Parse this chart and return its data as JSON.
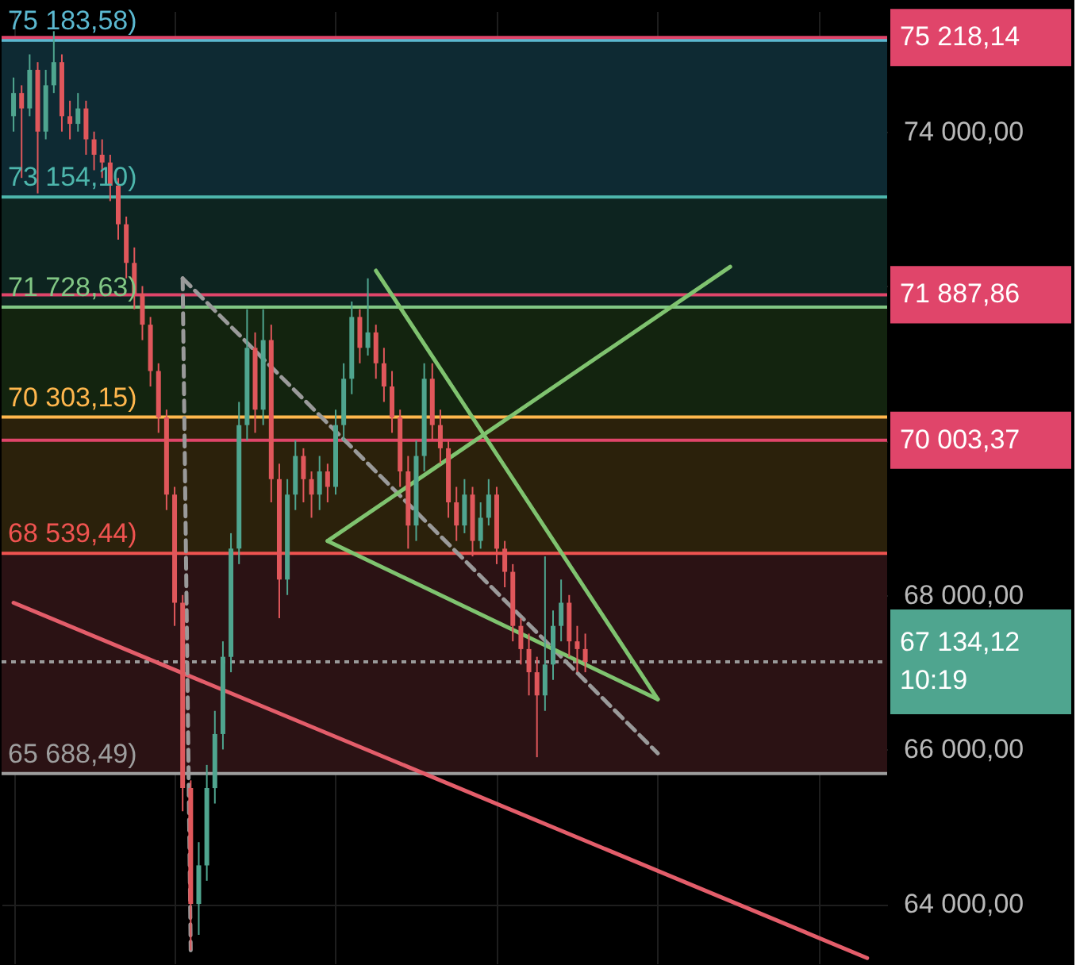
{
  "chart_data": {
    "type": "candlestick",
    "categories": [
      null,
      null,
      null,
      null,
      null,
      null,
      null,
      null,
      null,
      null,
      null,
      null,
      null,
      null,
      null,
      null,
      null,
      null,
      null,
      null,
      null,
      null,
      null,
      null,
      null,
      null,
      null,
      null,
      null,
      null,
      null,
      null,
      null,
      null,
      null,
      null,
      null,
      null,
      null,
      null,
      null,
      null,
      null,
      null,
      null,
      null,
      null,
      null,
      null,
      null,
      null,
      null,
      null,
      null,
      null,
      null,
      null,
      null,
      null,
      null,
      null,
      null,
      null,
      null,
      null,
      null,
      null,
      null,
      null,
      null,
      null,
      null,
      null,
      null,
      null,
      null,
      null,
      null,
      null,
      null,
      null,
      null,
      null,
      null,
      null,
      null,
      null,
      null,
      null,
      null,
      null,
      null,
      null,
      null,
      null,
      null,
      null,
      null,
      null,
      null,
      null,
      null,
      null,
      null,
      null,
      null,
      null,
      null
    ],
    "ohlc": [
      [
        74200,
        74700,
        74000,
        74500
      ],
      [
        74500,
        74600,
        73400,
        74300
      ],
      [
        74300,
        75000,
        74200,
        74800
      ],
      [
        74800,
        74900,
        73200,
        74000
      ],
      [
        74000,
        74800,
        73900,
        74600
      ],
      [
        74600,
        75300,
        74500,
        74900
      ],
      [
        74900,
        75000,
        74000,
        74200
      ],
      [
        74200,
        74400,
        73900,
        74100
      ],
      [
        74100,
        74500,
        74000,
        74300
      ],
      [
        74300,
        74400,
        73700,
        73900
      ],
      [
        73900,
        74000,
        73500,
        73700
      ],
      [
        73700,
        73900,
        73400,
        73600
      ],
      [
        73600,
        73700,
        73100,
        73300
      ],
      [
        73300,
        73400,
        72600,
        72800
      ],
      [
        72800,
        72900,
        72100,
        72300
      ],
      [
        72300,
        72500,
        71700,
        71900
      ],
      [
        71900,
        72000,
        71300,
        71500
      ],
      [
        71500,
        71600,
        70700,
        70900
      ],
      [
        70900,
        71000,
        70100,
        70300
      ],
      [
        70300,
        70400,
        69100,
        69300
      ],
      [
        69300,
        69400,
        67600,
        67900
      ],
      [
        67900,
        68000,
        65200,
        65500
      ],
      [
        65500,
        65600,
        63400,
        64000
      ],
      [
        64000,
        64800,
        63600,
        64500
      ],
      [
        64500,
        65800,
        64300,
        65500
      ],
      [
        65500,
        66500,
        65300,
        66200
      ],
      [
        66200,
        67400,
        66000,
        67200
      ],
      [
        67200,
        68800,
        67000,
        68600
      ],
      [
        68600,
        70500,
        68400,
        70200
      ],
      [
        70200,
        71700,
        70000,
        71200
      ],
      [
        71200,
        71400,
        70100,
        70400
      ],
      [
        70400,
        71700,
        70200,
        71300
      ],
      [
        71300,
        71500,
        69200,
        69500
      ],
      [
        69500,
        69700,
        67700,
        68200
      ],
      [
        68200,
        69500,
        68000,
        69300
      ],
      [
        69300,
        70000,
        69100,
        69800
      ],
      [
        69800,
        69900,
        69200,
        69500
      ],
      [
        69500,
        69600,
        69000,
        69300
      ],
      [
        69300,
        69800,
        69100,
        69600
      ],
      [
        69600,
        69700,
        69200,
        69400
      ],
      [
        69400,
        70400,
        69300,
        70200
      ],
      [
        70200,
        71000,
        70000,
        70800
      ],
      [
        70800,
        71800,
        70600,
        71600
      ],
      [
        71600,
        71700,
        71000,
        71200
      ],
      [
        71200,
        72100,
        71100,
        71400
      ],
      [
        71400,
        71500,
        70800,
        71000
      ],
      [
        71000,
        71200,
        70500,
        70700
      ],
      [
        70700,
        70900,
        70100,
        70300
      ],
      [
        70300,
        70400,
        69400,
        69600
      ],
      [
        69600,
        69800,
        68600,
        68900
      ],
      [
        68900,
        70000,
        68700,
        69800
      ],
      [
        69800,
        71000,
        69600,
        70800
      ],
      [
        70800,
        71000,
        70000,
        70200
      ],
      [
        70200,
        70400,
        69700,
        69900
      ],
      [
        69900,
        70000,
        69000,
        69200
      ],
      [
        69200,
        69400,
        68700,
        68900
      ],
      [
        68900,
        69500,
        68800,
        69300
      ],
      [
        69300,
        69400,
        68500,
        68700
      ],
      [
        68700,
        69200,
        68600,
        69000
      ],
      [
        69000,
        69500,
        68900,
        69300
      ],
      [
        69300,
        69400,
        68400,
        68600
      ],
      [
        68600,
        68700,
        68100,
        68300
      ],
      [
        68300,
        68400,
        67400,
        67600
      ],
      [
        67600,
        67700,
        67100,
        67300
      ],
      [
        67300,
        67500,
        66700,
        67000
      ],
      [
        67000,
        67200,
        65900,
        66700
      ],
      [
        66700,
        68500,
        66500,
        67100
      ],
      [
        67100,
        67800,
        66900,
        67600
      ],
      [
        67600,
        68200,
        67400,
        67900
      ],
      [
        67900,
        68000,
        67200,
        67400
      ],
      [
        67400,
        67600,
        67000,
        67300
      ],
      [
        67300,
        67500,
        67000,
        67134.12
      ],
      null,
      null,
      null,
      null,
      null,
      null,
      null,
      null,
      null,
      null,
      null,
      null,
      null,
      null,
      null,
      null,
      null,
      null,
      null,
      null,
      null,
      null,
      null,
      null,
      null,
      null,
      null,
      null,
      null,
      null,
      null,
      null,
      null,
      null,
      null,
      null
    ],
    "ylim": [
      63230,
      75560
    ],
    "yticks": [
      {
        "value": 64000,
        "label": "64 000,00"
      },
      {
        "value": 66000,
        "label": "66 000,00"
      },
      {
        "value": 68000,
        "label": "68 000,00"
      },
      {
        "value": 70000,
        "label": null
      },
      {
        "value": 72000,
        "label": null
      },
      {
        "value": 74000,
        "label": "74 000,00"
      }
    ],
    "tick_labels": "y",
    "grid": true,
    "series": [
      {
        "type": "line",
        "color": "#e35d6a",
        "line_style": "solid",
        "values": [
          67900,
          null,
          null,
          null,
          null,
          null,
          null,
          null,
          null,
          null,
          null,
          null,
          null,
          null,
          null,
          null,
          null,
          null,
          null,
          null,
          null,
          null,
          null,
          null,
          null,
          null,
          null,
          null,
          null,
          null,
          null,
          null,
          null,
          null,
          null,
          null,
          null,
          null,
          null,
          null,
          null,
          null,
          null,
          null,
          null,
          null,
          null,
          null,
          null,
          null,
          null,
          null,
          null,
          null,
          null,
          null,
          null,
          null,
          null,
          null,
          null,
          null,
          null,
          null,
          null,
          null,
          null,
          null,
          null,
          null,
          null,
          null,
          null,
          null,
          null,
          null,
          null,
          null,
          null,
          null,
          null,
          null,
          null,
          null,
          null,
          null,
          null,
          null,
          null,
          null,
          null,
          null,
          null,
          null,
          null,
          null,
          null,
          null,
          null,
          null,
          null,
          null,
          null,
          null,
          null,
          null,
          63300,
          null
        ]
      },
      {
        "type": "line",
        "color": "#9a9a9a",
        "line_style": "dashed",
        "values": [
          null,
          null,
          null,
          null,
          null,
          null,
          null,
          null,
          null,
          null,
          null,
          null,
          null,
          null,
          null,
          null,
          null,
          null,
          null,
          null,
          null,
          72100,
          63400,
          null,
          null,
          null,
          null,
          null,
          null,
          null,
          null,
          null,
          null,
          null,
          null,
          null,
          null,
          null,
          null,
          null,
          null,
          null,
          null,
          null,
          null,
          null,
          null,
          null,
          null,
          null,
          null,
          null,
          null,
          null,
          null,
          null,
          null,
          null,
          null,
          null,
          null,
          null,
          null,
          null,
          null,
          null,
          null,
          null,
          null,
          null,
          null,
          null,
          null,
          null,
          null,
          null,
          null,
          null,
          null,
          null,
          null,
          null,
          null,
          null,
          null,
          null,
          null,
          null,
          null,
          null,
          null,
          null,
          null,
          null,
          null,
          null,
          null,
          null,
          null,
          null,
          null,
          null,
          null,
          null,
          null,
          null,
          null,
          null
        ]
      },
      {
        "type": "line",
        "color": "#9a9a9a",
        "line_style": "dashed",
        "values": [
          null,
          null,
          null,
          null,
          null,
          null,
          null,
          null,
          null,
          null,
          null,
          null,
          null,
          null,
          null,
          null,
          null,
          null,
          null,
          null,
          null,
          72100,
          null,
          null,
          null,
          null,
          null,
          null,
          null,
          null,
          null,
          null,
          null,
          null,
          null,
          null,
          null,
          null,
          null,
          null,
          null,
          null,
          null,
          null,
          null,
          null,
          null,
          null,
          null,
          null,
          null,
          null,
          null,
          null,
          null,
          null,
          null,
          null,
          null,
          null,
          null,
          null,
          null,
          null,
          null,
          null,
          null,
          null,
          null,
          null,
          null,
          null,
          null,
          null,
          null,
          null,
          null,
          null,
          null,
          null,
          65950,
          null,
          null,
          null,
          null,
          null,
          null,
          null,
          null,
          null,
          null,
          null,
          null,
          null,
          null,
          null,
          null,
          null,
          null,
          null,
          null,
          null,
          null,
          null,
          null,
          null,
          null,
          null
        ]
      },
      {
        "type": "line",
        "color": "#7fc36f",
        "line_style": "solid",
        "values": [
          null,
          null,
          null,
          null,
          null,
          null,
          null,
          null,
          null,
          null,
          null,
          null,
          null,
          null,
          null,
          null,
          null,
          null,
          null,
          null,
          null,
          null,
          null,
          null,
          null,
          null,
          null,
          null,
          null,
          null,
          null,
          null,
          null,
          null,
          null,
          null,
          null,
          null,
          null,
          68700,
          null,
          null,
          null,
          null,
          null,
          null,
          null,
          null,
          null,
          null,
          null,
          null,
          null,
          null,
          null,
          null,
          null,
          null,
          null,
          null,
          null,
          null,
          null,
          null,
          null,
          null,
          null,
          null,
          null,
          null,
          null,
          null,
          null,
          null,
          null,
          null,
          null,
          null,
          null,
          null,
          null,
          null,
          null,
          null,
          null,
          null,
          null,
          null,
          null,
          72250,
          null,
          null,
          null,
          null,
          null,
          null,
          null,
          null,
          null,
          null,
          null,
          null,
          null,
          null,
          null,
          null,
          null,
          null
        ]
      },
      {
        "type": "line",
        "color": "#7fc36f",
        "line_style": "solid",
        "values": [
          null,
          null,
          null,
          null,
          null,
          null,
          null,
          null,
          null,
          null,
          null,
          null,
          null,
          null,
          null,
          null,
          null,
          null,
          null,
          null,
          null,
          null,
          null,
          null,
          null,
          null,
          null,
          null,
          null,
          null,
          null,
          null,
          null,
          null,
          null,
          null,
          null,
          null,
          null,
          null,
          null,
          null,
          null,
          null,
          null,
          72200,
          null,
          null,
          null,
          null,
          null,
          null,
          null,
          null,
          null,
          null,
          null,
          null,
          null,
          null,
          null,
          null,
          null,
          null,
          null,
          null,
          null,
          null,
          null,
          null,
          null,
          null,
          null,
          null,
          null,
          null,
          null,
          null,
          null,
          null,
          66650,
          null,
          null,
          null,
          null,
          null,
          null,
          null,
          null,
          null,
          null,
          null,
          null,
          null,
          null,
          null,
          null,
          null,
          null,
          null,
          null,
          null,
          null,
          null,
          null,
          null,
          null,
          null
        ]
      },
      {
        "type": "line",
        "color": "#7fc36f",
        "line_style": "solid",
        "values": [
          null,
          null,
          null,
          null,
          null,
          null,
          null,
          null,
          null,
          null,
          null,
          null,
          null,
          null,
          null,
          null,
          null,
          null,
          null,
          null,
          null,
          null,
          null,
          null,
          null,
          null,
          null,
          null,
          null,
          null,
          null,
          null,
          null,
          null,
          null,
          null,
          null,
          null,
          null,
          68700,
          null,
          null,
          null,
          null,
          null,
          null,
          null,
          null,
          null,
          null,
          null,
          null,
          null,
          null,
          null,
          null,
          null,
          null,
          null,
          null,
          null,
          null,
          null,
          null,
          null,
          null,
          null,
          null,
          null,
          null,
          null,
          null,
          null,
          null,
          null,
          null,
          null,
          null,
          null,
          null,
          66650,
          null,
          null,
          null,
          null,
          null,
          null,
          null,
          null,
          null,
          null,
          null,
          null,
          null,
          null,
          null,
          null,
          null,
          null,
          null,
          null,
          null,
          null,
          null,
          null,
          null,
          null,
          null
        ]
      }
    ],
    "bands": [
      {
        "axis": "y",
        "from": 73154.1,
        "to": 75183.58,
        "color": "#0e2a33"
      },
      {
        "axis": "y",
        "from": 71728.63,
        "to": 73154.1,
        "color": "#0d2420"
      },
      {
        "axis": "y",
        "from": 70303.15,
        "to": 71728.63,
        "color": "#13240f"
      },
      {
        "axis": "y",
        "from": 68539.44,
        "to": 70303.15,
        "color": "#2b210b"
      },
      {
        "axis": "y",
        "from": 65688.49,
        "to": 68539.44,
        "color": "#2b1214"
      }
    ],
    "ref_lines": [
      {
        "axis": "y",
        "value": 75183.58,
        "color": "#5bb8d0",
        "line_style": "solid"
      },
      {
        "axis": "y",
        "value": 73154.1,
        "color": "#4db6ac",
        "line_style": "solid"
      },
      {
        "axis": "y",
        "value": 71728.63,
        "color": "#81c784",
        "line_style": "solid"
      },
      {
        "axis": "y",
        "value": 70303.15,
        "color": "#ffb74d",
        "line_style": "solid"
      },
      {
        "axis": "y",
        "value": 68539.44,
        "color": "#ef5350",
        "line_style": "solid"
      },
      {
        "axis": "y",
        "value": 65688.49,
        "color": "#9e9e9e",
        "line_style": "solid"
      },
      {
        "axis": "y",
        "value": 75218.14,
        "color": "#e0456a",
        "line_style": "solid",
        "label": "75 218,14"
      },
      {
        "axis": "y",
        "value": 71887.86,
        "color": "#e0456a",
        "line_style": "solid",
        "label": "71 887,86"
      },
      {
        "axis": "y",
        "value": 70003.37,
        "color": "#e0456a",
        "line_style": "solid",
        "label": "70 003,37"
      },
      {
        "axis": "y",
        "value": 67134.12,
        "color": "#9a9a9a",
        "line_style": "dotted",
        "label": "67 134,12\n10:19"
      }
    ],
    "annotations": [
      {
        "text": "75 183,58)",
        "y": 75183.58
      },
      {
        "text": "73 154,10)",
        "y": 73154.1
      },
      {
        "text": "71 728,63)",
        "y": 71728.63
      },
      {
        "text": "70 303,15)",
        "y": 70303.15
      },
      {
        "text": "68 539,44)",
        "y": 68539.44
      },
      {
        "text": "65 688,49)",
        "y": 65688.49
      }
    ]
  }
}
